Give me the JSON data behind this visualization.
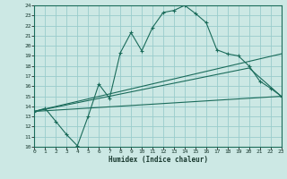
{
  "xlabel": "Humidex (Indice chaleur)",
  "bg_color": "#cce8e4",
  "grid_color": "#99cccc",
  "line_color": "#1a6b5a",
  "xmin": 0,
  "xmax": 23,
  "ymin": 10,
  "ymax": 24,
  "main_x": [
    0,
    1,
    2,
    3,
    4,
    5,
    6,
    7,
    8,
    9,
    10,
    11,
    12,
    13,
    14,
    15,
    16,
    17,
    18,
    19,
    20,
    21,
    22,
    23
  ],
  "main_y": [
    13.5,
    13.8,
    12.5,
    11.2,
    10.1,
    13.0,
    16.2,
    14.8,
    19.3,
    21.3,
    19.5,
    21.8,
    23.3,
    23.5,
    24.0,
    23.2,
    22.3,
    19.6,
    19.2,
    19.0,
    18.0,
    16.5,
    15.8,
    15.0
  ],
  "line2_x": [
    0,
    23
  ],
  "line2_y": [
    13.5,
    19.2
  ],
  "line3_x": [
    0,
    20,
    23
  ],
  "line3_y": [
    13.5,
    17.8,
    15.0
  ],
  "line4_x": [
    0,
    23
  ],
  "line4_y": [
    13.5,
    15.0
  ]
}
